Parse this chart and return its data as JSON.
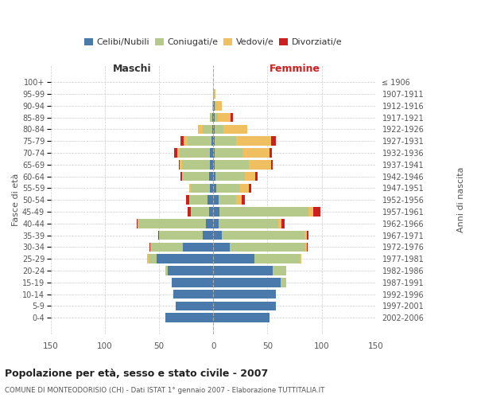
{
  "age_groups": [
    "0-4",
    "5-9",
    "10-14",
    "15-19",
    "20-24",
    "25-29",
    "30-34",
    "35-39",
    "40-44",
    "45-49",
    "50-54",
    "55-59",
    "60-64",
    "65-69",
    "70-74",
    "75-79",
    "80-84",
    "85-89",
    "90-94",
    "95-99",
    "100+"
  ],
  "birth_years": [
    "2002-2006",
    "1997-2001",
    "1992-1996",
    "1987-1991",
    "1982-1986",
    "1977-1981",
    "1972-1976",
    "1967-1971",
    "1962-1966",
    "1957-1961",
    "1952-1956",
    "1947-1951",
    "1942-1946",
    "1937-1941",
    "1932-1936",
    "1927-1931",
    "1922-1926",
    "1917-1921",
    "1912-1916",
    "1907-1911",
    "≤ 1906"
  ],
  "males": {
    "celibi": [
      44,
      35,
      37,
      38,
      42,
      52,
      28,
      10,
      7,
      4,
      5,
      3,
      4,
      3,
      3,
      2,
      1,
      1,
      0,
      0,
      0
    ],
    "coniugati": [
      0,
      0,
      0,
      0,
      2,
      8,
      30,
      40,
      63,
      17,
      17,
      18,
      24,
      26,
      28,
      22,
      9,
      2,
      1,
      0,
      0
    ],
    "vedovi": [
      0,
      0,
      0,
      0,
      0,
      1,
      0,
      0,
      0,
      0,
      0,
      1,
      1,
      2,
      2,
      3,
      4,
      0,
      0,
      0,
      0
    ],
    "divorziati": [
      0,
      0,
      0,
      0,
      0,
      0,
      1,
      1,
      1,
      3,
      3,
      0,
      1,
      1,
      3,
      3,
      0,
      0,
      0,
      0,
      0
    ]
  },
  "females": {
    "nubili": [
      52,
      58,
      58,
      62,
      55,
      38,
      15,
      8,
      5,
      6,
      5,
      3,
      2,
      1,
      1,
      1,
      1,
      1,
      1,
      0,
      0
    ],
    "coniugate": [
      0,
      0,
      0,
      5,
      12,
      42,
      70,
      76,
      55,
      82,
      16,
      22,
      27,
      32,
      26,
      20,
      8,
      3,
      2,
      1,
      0
    ],
    "vedove": [
      0,
      0,
      0,
      0,
      0,
      1,
      1,
      2,
      3,
      4,
      5,
      8,
      10,
      20,
      25,
      32,
      22,
      12,
      5,
      1,
      0
    ],
    "divorziate": [
      0,
      0,
      0,
      0,
      0,
      0,
      1,
      2,
      3,
      7,
      3,
      2,
      2,
      2,
      2,
      5,
      0,
      2,
      0,
      0,
      0
    ]
  },
  "colors": {
    "celibi": "#4a7aab",
    "coniugati": "#b5c98a",
    "vedovi": "#f0c060",
    "divorziati": "#cc2020"
  },
  "xlim": 150,
  "title": "Popolazione per età, sesso e stato civile - 2007",
  "subtitle": "COMUNE DI MONTEODORISIO (CH) - Dati ISTAT 1° gennaio 2007 - Elaborazione TUTTITALIA.IT",
  "ylabel_left": "Fasce di età",
  "ylabel_right": "Anni di nascita",
  "xlabel_left": "Maschi",
  "xlabel_right": "Femmine"
}
